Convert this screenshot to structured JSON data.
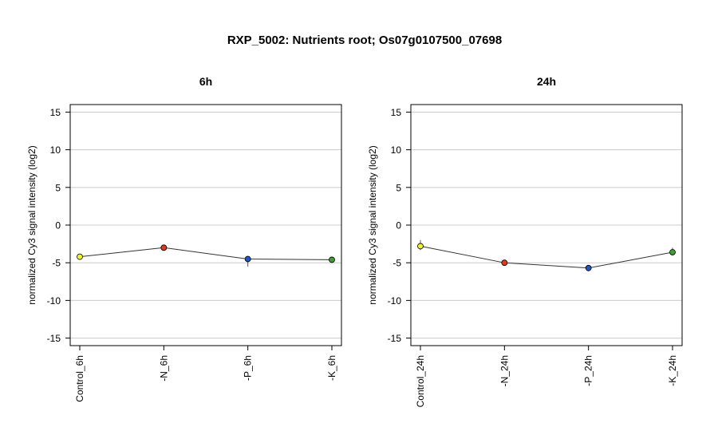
{
  "figure": {
    "title": "RXP_5002: Nutrients root; Os07g0107500_07698"
  },
  "chart_data": [
    {
      "type": "line",
      "title": "6h",
      "ylabel": "normalized Cy3 signal intensity (log2)",
      "ylim": [
        -16,
        16
      ],
      "yticks": [
        15,
        10,
        5,
        0,
        -5,
        -10,
        -15
      ],
      "grid": true,
      "categories": [
        "Control_6h",
        "-N_6h",
        "-P_6h",
        "-K_6h"
      ],
      "values": [
        -4.2,
        -3.0,
        -4.5,
        -4.6
      ],
      "error_bars": [
        {
          "low": -4.5,
          "high": -3.9
        },
        {
          "low": -3.2,
          "high": -2.8
        },
        {
          "low": -5.5,
          "high": -4.2
        },
        {
          "low": -5.0,
          "high": -4.2
        }
      ],
      "point_colors": [
        "#f2f230",
        "#e03a1e",
        "#2255c4",
        "#3aa02e"
      ]
    },
    {
      "type": "line",
      "title": "24h",
      "ylabel": "normalized Cy3 signal intensity (log2)",
      "ylim": [
        -16,
        16
      ],
      "yticks": [
        15,
        10,
        5,
        0,
        -5,
        -10,
        -15
      ],
      "grid": true,
      "categories": [
        "Control_24h",
        "-N_24h",
        "-P_24h",
        "-K_24h"
      ],
      "values": [
        -2.8,
        -5.0,
        -5.7,
        -3.6
      ],
      "error_bars": [
        {
          "low": -3.3,
          "high": -2.0
        },
        {
          "low": -5.3,
          "high": -4.8
        },
        {
          "low": -6.0,
          "high": -5.4
        },
        {
          "low": -4.0,
          "high": -3.0
        }
      ],
      "point_colors": [
        "#f2f230",
        "#e03a1e",
        "#2255c4",
        "#3aa02e"
      ]
    }
  ]
}
